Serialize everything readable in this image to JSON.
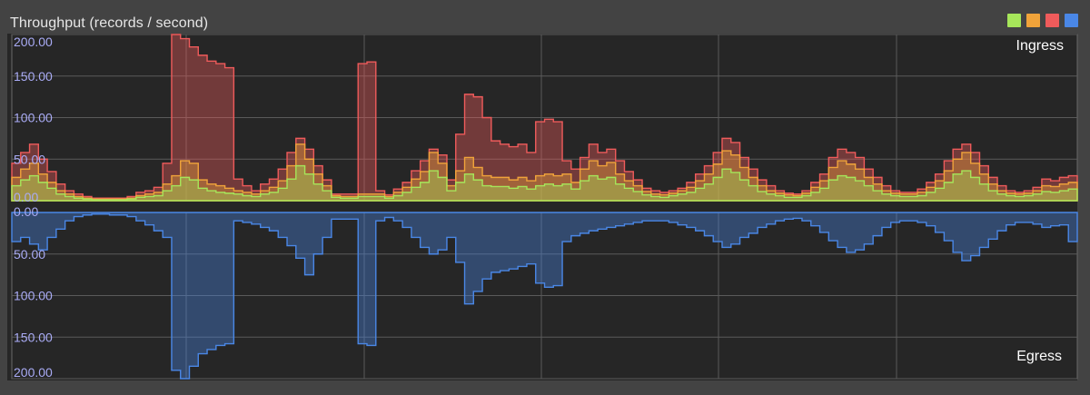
{
  "title": "Throughput (records / second)",
  "colors": {
    "background": "#434343",
    "plot_background": "#262626",
    "grid": "#5a5a5a",
    "tick_label": "#a9abf5",
    "panel_label": "#ffffff"
  },
  "legend": {
    "placement": "top-right",
    "swatches": [
      {
        "color": "#a6e65a"
      },
      {
        "color": "#f0a33a"
      },
      {
        "color": "#ef5b5b"
      },
      {
        "color": "#4a87e6"
      }
    ]
  },
  "chart_data": [
    {
      "type": "area",
      "panel_label": "Ingress",
      "ylim": [
        0,
        200
      ],
      "yticks": [
        "0.00",
        "50.00",
        "100.00",
        "150.00",
        "200.00"
      ],
      "xlim": [
        0,
        120
      ],
      "grid": true,
      "step": true,
      "series": [
        {
          "color": "#ef5b5b",
          "values": [
            45,
            58,
            68,
            50,
            35,
            20,
            12,
            8,
            5,
            3,
            3,
            3,
            3,
            5,
            10,
            12,
            16,
            45,
            200,
            195,
            185,
            175,
            168,
            165,
            160,
            26,
            18,
            12,
            20,
            26,
            38,
            58,
            75,
            62,
            42,
            25,
            8,
            8,
            8,
            165,
            167,
            12,
            7,
            14,
            22,
            36,
            48,
            62,
            55,
            25,
            80,
            128,
            125,
            100,
            72,
            68,
            65,
            68,
            58,
            95,
            98,
            95,
            48,
            38,
            52,
            68,
            58,
            62,
            48,
            35,
            25,
            15,
            12,
            10,
            12,
            15,
            22,
            32,
            42,
            58,
            75,
            70,
            52,
            38,
            25,
            18,
            12,
            9,
            8,
            12,
            22,
            32,
            52,
            62,
            58,
            52,
            38,
            28,
            18,
            12,
            10,
            10,
            14,
            22,
            32,
            48,
            62,
            68,
            58,
            42,
            28,
            18,
            12,
            10,
            12,
            16,
            26,
            24,
            28,
            30
          ]
        },
        {
          "color": "#f0a33a",
          "values": [
            28,
            38,
            45,
            32,
            22,
            12,
            8,
            5,
            3,
            2,
            2,
            2,
            2,
            3,
            6,
            8,
            10,
            20,
            30,
            48,
            45,
            25,
            20,
            18,
            15,
            12,
            10,
            8,
            12,
            16,
            24,
            42,
            68,
            50,
            32,
            18,
            6,
            5,
            5,
            8,
            8,
            8,
            5,
            10,
            16,
            26,
            35,
            58,
            45,
            18,
            36,
            52,
            40,
            30,
            28,
            28,
            25,
            28,
            24,
            30,
            32,
            30,
            32,
            22,
            38,
            48,
            42,
            46,
            32,
            24,
            18,
            11,
            8,
            7,
            9,
            12,
            16,
            24,
            32,
            44,
            60,
            55,
            40,
            28,
            18,
            12,
            9,
            7,
            6,
            9,
            16,
            24,
            40,
            48,
            44,
            38,
            28,
            20,
            12,
            9,
            8,
            8,
            10,
            16,
            24,
            36,
            50,
            58,
            45,
            32,
            20,
            12,
            9,
            8,
            9,
            12,
            18,
            17,
            20,
            22
          ]
        },
        {
          "color": "#a6e65a",
          "values": [
            18,
            25,
            30,
            22,
            15,
            8,
            5,
            3,
            2,
            1,
            1,
            1,
            1,
            2,
            4,
            5,
            6,
            12,
            18,
            28,
            25,
            15,
            12,
            10,
            9,
            8,
            6,
            5,
            8,
            10,
            15,
            26,
            42,
            32,
            20,
            12,
            4,
            3,
            3,
            5,
            5,
            5,
            3,
            6,
            10,
            16,
            22,
            36,
            28,
            12,
            22,
            32,
            25,
            18,
            17,
            17,
            15,
            17,
            14,
            18,
            20,
            18,
            20,
            14,
            24,
            30,
            26,
            28,
            20,
            15,
            11,
            7,
            5,
            4,
            6,
            8,
            10,
            15,
            20,
            28,
            38,
            34,
            25,
            18,
            11,
            8,
            6,
            4,
            4,
            6,
            10,
            15,
            25,
            30,
            28,
            24,
            18,
            12,
            8,
            6,
            5,
            5,
            6,
            10,
            15,
            22,
            32,
            36,
            28,
            20,
            12,
            8,
            6,
            5,
            6,
            8,
            11,
            10,
            12,
            14
          ]
        }
      ]
    },
    {
      "type": "area",
      "panel_label": "Egress",
      "inverted": true,
      "ylim": [
        0,
        200
      ],
      "yticks": [
        "0.00",
        "50.00",
        "100.00",
        "150.00",
        "200.00"
      ],
      "xlim": [
        0,
        120
      ],
      "grid": true,
      "step": true,
      "series": [
        {
          "color": "#4a87e6",
          "values": [
            35,
            30,
            38,
            45,
            30,
            20,
            10,
            5,
            3,
            2,
            2,
            3,
            3,
            5,
            10,
            15,
            22,
            30,
            190,
            200,
            185,
            170,
            165,
            160,
            158,
            10,
            12,
            14,
            18,
            22,
            30,
            40,
            55,
            75,
            50,
            30,
            8,
            8,
            8,
            158,
            160,
            10,
            6,
            10,
            18,
            30,
            42,
            50,
            45,
            30,
            60,
            110,
            95,
            80,
            72,
            70,
            68,
            65,
            62,
            85,
            90,
            88,
            35,
            28,
            25,
            22,
            20,
            18,
            16,
            14,
            12,
            10,
            10,
            10,
            12,
            15,
            18,
            22,
            28,
            35,
            42,
            38,
            30,
            25,
            18,
            14,
            10,
            8,
            7,
            10,
            16,
            24,
            34,
            42,
            48,
            45,
            38,
            28,
            18,
            12,
            10,
            10,
            12,
            16,
            24,
            34,
            48,
            58,
            52,
            42,
            32,
            22,
            15,
            12,
            12,
            14,
            18,
            16,
            15,
            35
          ]
        }
      ]
    }
  ]
}
